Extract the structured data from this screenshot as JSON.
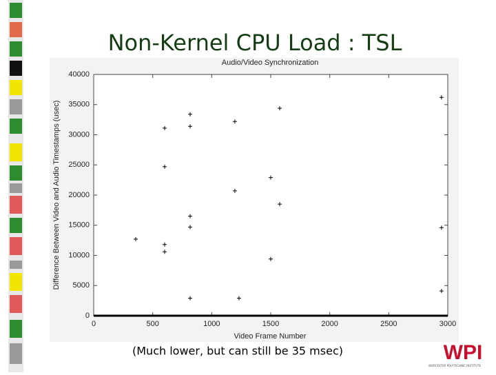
{
  "slide": {
    "title": "Non-Kernel CPU Load : TSL",
    "caption": "(Much lower, but can still be 35 msec)",
    "logo": "WPI",
    "logo_subtitle": "WORCESTER POLYTECHNIC INSTITUTE"
  },
  "chart_data": {
    "type": "scatter",
    "title": "Audio/Video Synchronization",
    "x_label": "Video Frame Number",
    "y_label": "Difference Between Video and Audio Timestamps (usec)",
    "series": [
      {
        "color": "#000000",
        "x": [
          356,
          601,
          601,
          601,
          601,
          817,
          817,
          817,
          817,
          817,
          1196,
          1196,
          1231,
          1500,
          1500,
          1576,
          1576,
          2947,
          2947,
          2947
        ],
        "values": [
          12700,
          31100,
          24700,
          11800,
          10600,
          33400,
          31400,
          16500,
          14700,
          2900,
          32200,
          20700,
          2900,
          22900,
          9400,
          34400,
          18500,
          36200,
          14600,
          4100
        ]
      }
    ],
    "xlim": [
      0,
      3000
    ],
    "xticks": [
      0,
      500,
      1000,
      1500,
      2000,
      2500,
      3000
    ],
    "ylim": [
      0,
      40000
    ],
    "yticks": [
      0,
      5000,
      10000,
      15000,
      20000,
      25000,
      30000,
      35000,
      40000
    ],
    "grid": false
  }
}
